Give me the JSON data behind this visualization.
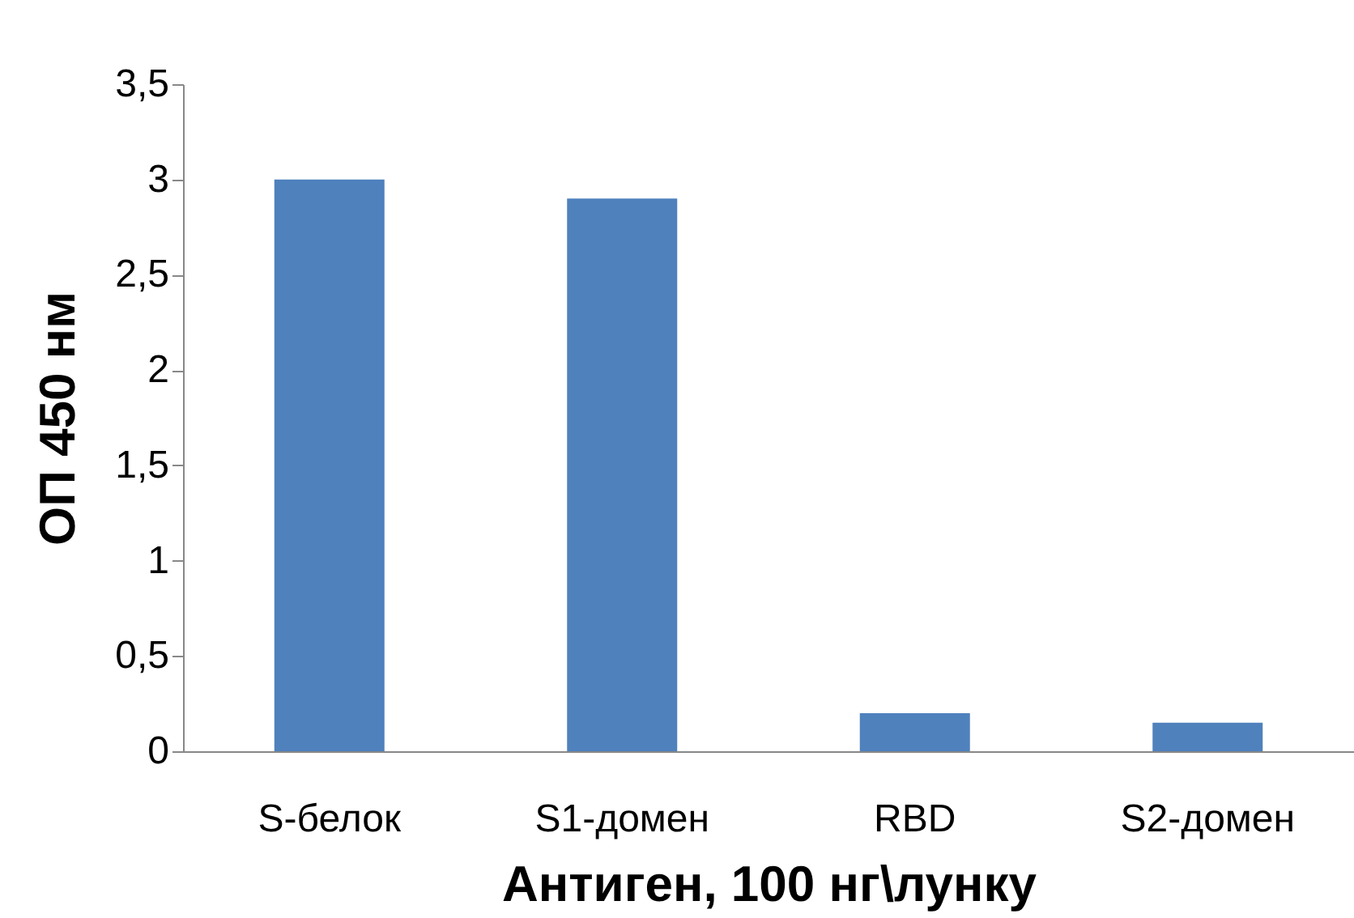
{
  "chart_data": {
    "type": "bar",
    "xlabel": "Антиген, 100 нг\\лунку",
    "ylabel": "ОП 450 нм",
    "categories": [
      "S-белок",
      "S1-домен",
      "RBD",
      "S2-домен"
    ],
    "values": [
      3.0,
      2.9,
      0.2,
      0.15
    ],
    "color": "#4f81bd",
    "ylim": [
      0,
      3.5
    ],
    "yticks": [
      0,
      {
        "value": 0.5,
        "label": "0,5"
      },
      1,
      {
        "value": 1.5,
        "label": "1,5"
      },
      2,
      {
        "value": 2.5,
        "label": "2,5"
      },
      3,
      {
        "value": 3.5,
        "label": "3,5"
      }
    ],
    "grid": false
  }
}
